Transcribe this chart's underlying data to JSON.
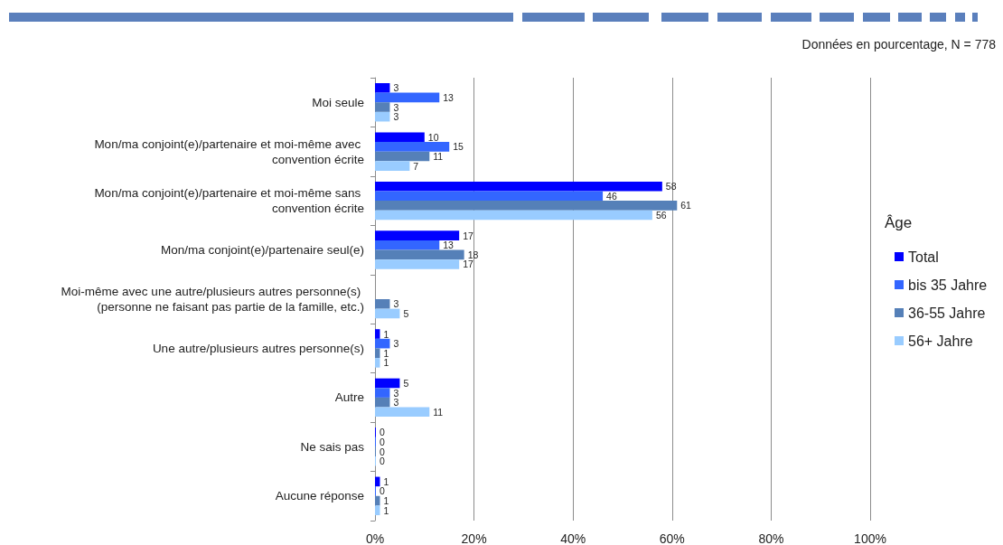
{
  "chart_data": {
    "type": "bar",
    "orientation": "horizontal",
    "categories": [
      "Moi seule",
      "Mon/ma conjoint(e)/partenaire et moi-même avec convention écrite",
      "Mon/ma conjoint(e)/partenaire et moi-même sans convention écrite",
      "Mon/ma conjoint(e)/partenaire seul(e)",
      "Moi-même avec une autre/plusieurs autres personne(s) (personne ne faisant pas partie de la famille, etc.)",
      "Une autre/plusieurs autres personne(s)",
      "Autre",
      "Ne sais pas",
      "Aucune réponse"
    ],
    "series": [
      {
        "name": "Total",
        "color": "#0000ff",
        "values": [
          3,
          10,
          58,
          17,
          null,
          1,
          5,
          0,
          1
        ]
      },
      {
        "name": "bis 35 Jahre",
        "color": "#3366ff",
        "values": [
          13,
          15,
          46,
          13,
          null,
          3,
          3,
          0,
          0
        ]
      },
      {
        "name": "36-55 Jahre",
        "color": "#5580b8",
        "values": [
          3,
          11,
          61,
          18,
          3,
          1,
          3,
          0,
          1
        ]
      },
      {
        "name": "56+ Jahre",
        "color": "#99ccff",
        "values": [
          3,
          7,
          56,
          17,
          5,
          1,
          11,
          0,
          1
        ]
      }
    ],
    "xlim": [
      0,
      100
    ],
    "xticks": [
      {
        "value": 0,
        "label": "0%"
      },
      {
        "value": 20,
        "label": "20%"
      },
      {
        "value": 40,
        "label": "40%"
      },
      {
        "value": 60,
        "label": "60%"
      },
      {
        "value": 80,
        "label": "80%"
      },
      {
        "value": 100,
        "label": "100%"
      }
    ],
    "grid": "x",
    "legend": "right",
    "legend_title": "Âge",
    "data_labels": true,
    "annotations": [
      "Données en pourcentage, N = 778"
    ]
  }
}
